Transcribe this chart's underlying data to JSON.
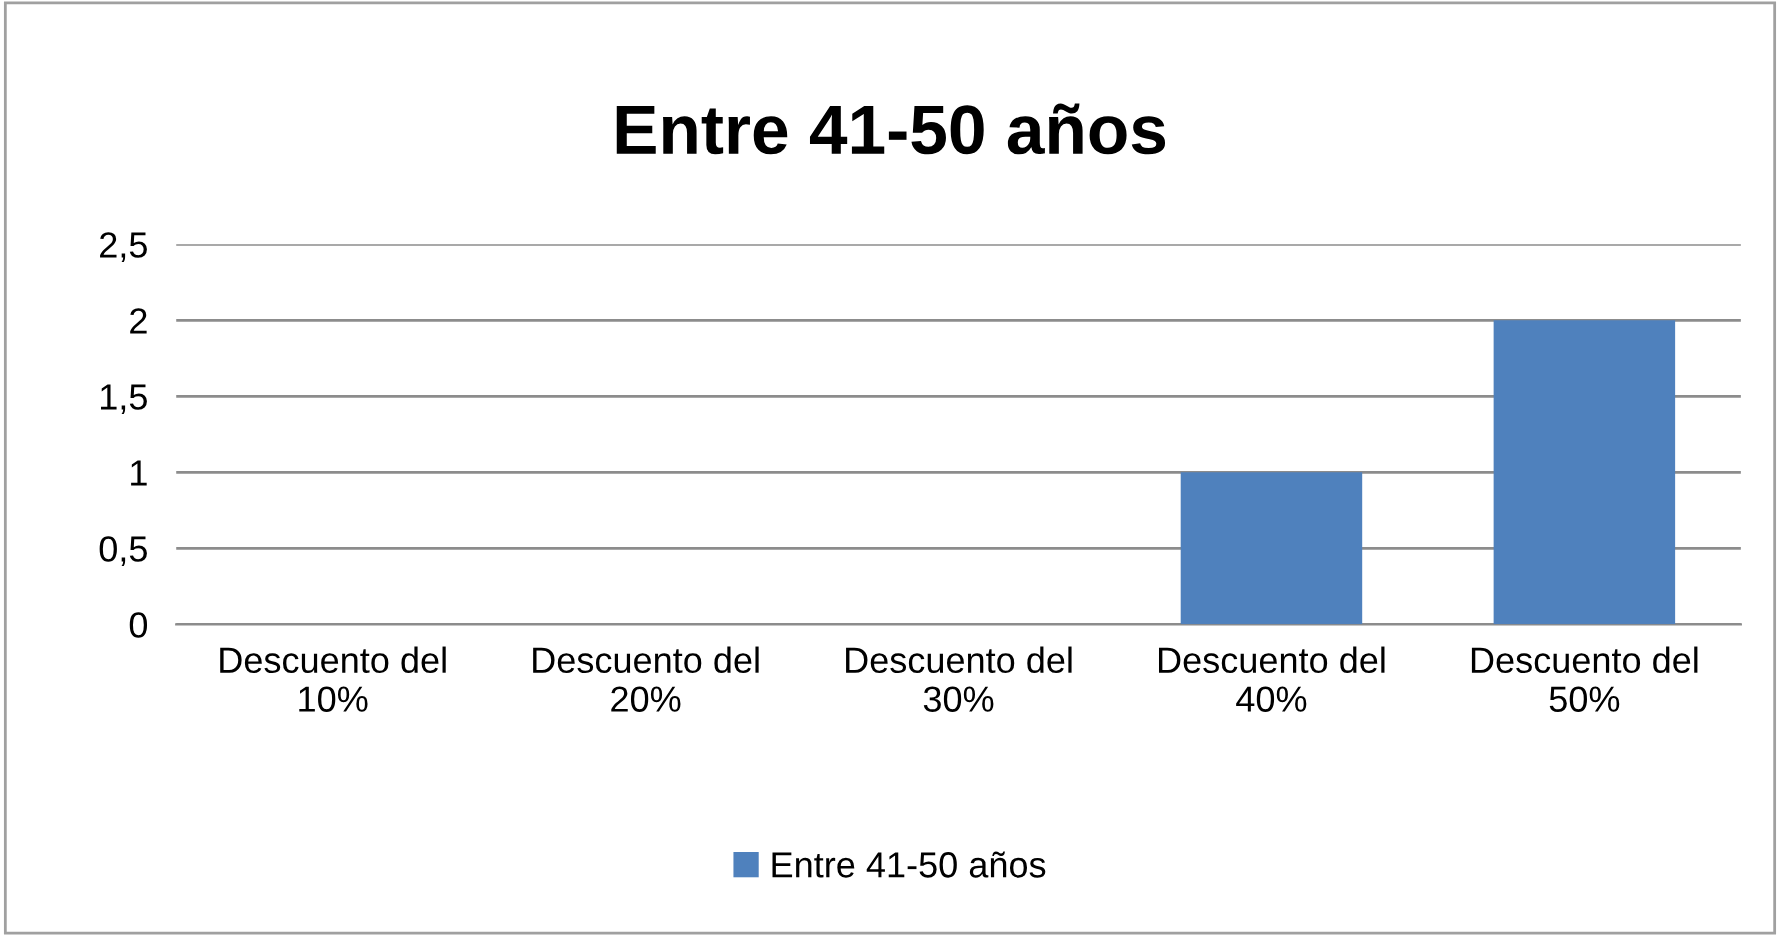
{
  "chart_data": {
    "type": "bar",
    "title": "Entre 41-50 años",
    "categories": [
      "Descuento del 10%",
      "Descuento del 20%",
      "Descuento del 30%",
      "Descuento del 40%",
      "Descuento del 50%"
    ],
    "series": [
      {
        "name": "Entre 41-50 años",
        "color": "#4f81bd",
        "values": [
          0,
          0,
          0,
          1,
          2
        ]
      }
    ],
    "ylim": [
      0,
      2.5
    ],
    "yticks": [
      0,
      {
        "value": 0.5,
        "label": "0,5"
      },
      1,
      {
        "value": 1.5,
        "label": "1,5"
      },
      2,
      {
        "value": 2.5,
        "label": "2,5"
      }
    ],
    "grid": "y",
    "legend": "bottom"
  }
}
